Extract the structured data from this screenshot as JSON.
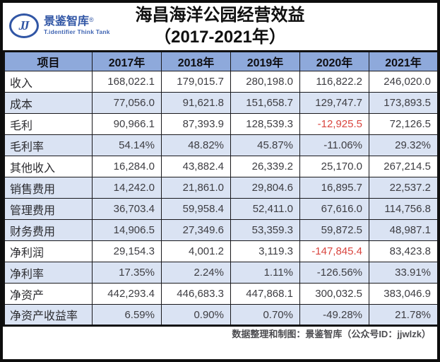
{
  "logo": {
    "monogram": "JJ",
    "name": "景鉴智库",
    "registered": "®",
    "tagline": "T.identifier Think Tank"
  },
  "title": {
    "line1": "海昌海洋公园经营效益",
    "line2": "（2017-2021年）"
  },
  "table": {
    "columns": [
      "项目",
      "2017年",
      "2018年",
      "2019年",
      "2020年",
      "2021年"
    ],
    "rows": [
      {
        "label": "收入",
        "values": [
          "168,022.1",
          "179,015.7",
          "280,198.0",
          "116,822.2",
          "246,020.0"
        ],
        "shaded": false,
        "red": []
      },
      {
        "label": "成本",
        "values": [
          "77,056.0",
          "91,621.8",
          "151,658.7",
          "129,747.7",
          "173,893.5"
        ],
        "shaded": true,
        "red": []
      },
      {
        "label": "毛利",
        "values": [
          "90,966.1",
          "87,393.9",
          "128,539.3",
          "-12,925.5",
          "72,126.5"
        ],
        "shaded": false,
        "red": [
          3
        ]
      },
      {
        "label": "毛利率",
        "values": [
          "54.14%",
          "48.82%",
          "45.87%",
          "-11.06%",
          "29.32%"
        ],
        "shaded": true,
        "red": []
      },
      {
        "label": "其他收入",
        "values": [
          "16,284.0",
          "43,882.4",
          "26,339.2",
          "25,170.0",
          "267,214.5"
        ],
        "shaded": false,
        "red": []
      },
      {
        "label": "销售费用",
        "values": [
          "14,242.0",
          "21,861.0",
          "29,804.6",
          "16,895.7",
          "22,537.2"
        ],
        "shaded": true,
        "red": []
      },
      {
        "label": "管理费用",
        "values": [
          "36,703.4",
          "59,958.4",
          "52,411.0",
          "67,616.0",
          "114,756.8"
        ],
        "shaded": true,
        "red": []
      },
      {
        "label": "财务费用",
        "values": [
          "14,906.5",
          "27,349.6",
          "53,359.3",
          "59,872.5",
          "48,987.1"
        ],
        "shaded": true,
        "red": []
      },
      {
        "label": "净利润",
        "values": [
          "29,154.3",
          "4,001.2",
          "3,119.3",
          "-147,845.4",
          "83,423.8"
        ],
        "shaded": false,
        "red": [
          3
        ]
      },
      {
        "label": "净利率",
        "values": [
          "17.35%",
          "2.24%",
          "1.11%",
          "-126.56%",
          "33.91%"
        ],
        "shaded": true,
        "red": []
      },
      {
        "label": "净资产",
        "values": [
          "442,293.4",
          "446,683.3",
          "447,868.1",
          "300,032.5",
          "383,046.9"
        ],
        "shaded": false,
        "red": []
      },
      {
        "label": "净资产收益率",
        "values": [
          "6.59%",
          "0.90%",
          "0.70%",
          "-49.28%",
          "21.78%"
        ],
        "shaded": true,
        "red": []
      }
    ]
  },
  "footer": {
    "credit": "数据整理和制图：景鉴智库（公众号ID：jjwlzk）"
  },
  "colors": {
    "header_bg": "#8ea9db",
    "stripe_bg": "#dae3f3",
    "border": "#18181c",
    "negative": "#d9453f",
    "brand_blue": "#3156a5"
  },
  "chart_data": {
    "type": "table",
    "title": "海昌海洋公园经营效益（2017-2021年）",
    "categories": [
      "2017年",
      "2018年",
      "2019年",
      "2020年",
      "2021年"
    ],
    "series": [
      {
        "name": "收入",
        "values": [
          168022.1,
          179015.7,
          280198.0,
          116822.2,
          246020.0
        ]
      },
      {
        "name": "成本",
        "values": [
          77056.0,
          91621.8,
          151658.7,
          129747.7,
          173893.5
        ]
      },
      {
        "name": "毛利",
        "values": [
          90966.1,
          87393.9,
          128539.3,
          -12925.5,
          72126.5
        ]
      },
      {
        "name": "毛利率(%)",
        "values": [
          54.14,
          48.82,
          45.87,
          -11.06,
          29.32
        ]
      },
      {
        "name": "其他收入",
        "values": [
          16284.0,
          43882.4,
          26339.2,
          25170.0,
          267214.5
        ]
      },
      {
        "name": "销售费用",
        "values": [
          14242.0,
          21861.0,
          29804.6,
          16895.7,
          22537.2
        ]
      },
      {
        "name": "管理费用",
        "values": [
          36703.4,
          59958.4,
          52411.0,
          67616.0,
          114756.8
        ]
      },
      {
        "name": "财务费用",
        "values": [
          14906.5,
          27349.6,
          53359.3,
          59872.5,
          48987.1
        ]
      },
      {
        "name": "净利润",
        "values": [
          29154.3,
          4001.2,
          3119.3,
          -147845.4,
          83423.8
        ]
      },
      {
        "name": "净利率(%)",
        "values": [
          17.35,
          2.24,
          1.11,
          -126.56,
          33.91
        ]
      },
      {
        "name": "净资产",
        "values": [
          442293.4,
          446683.3,
          447868.1,
          300032.5,
          383046.9
        ]
      },
      {
        "name": "净资产收益率(%)",
        "values": [
          6.59,
          0.9,
          0.7,
          -49.28,
          21.78
        ]
      }
    ]
  }
}
